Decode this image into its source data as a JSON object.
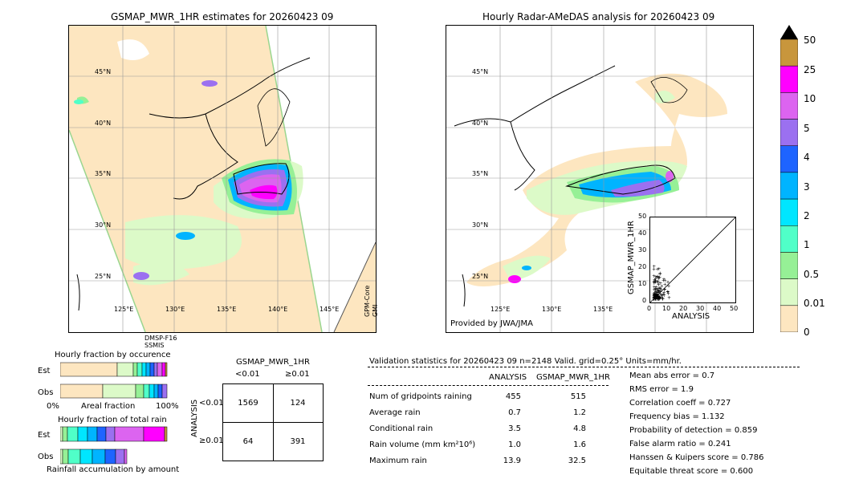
{
  "left_map": {
    "title": "GSMAP_MWR_1HR estimates for 20260423 09",
    "lat_labels": [
      "45°N",
      "40°N",
      "35°N",
      "30°N",
      "25°N"
    ],
    "lon_labels": [
      "125°E",
      "130°E",
      "135°E",
      "140°E",
      "145°E"
    ],
    "sensor_labels": {
      "dmsp": "DMSP-F16",
      "ssmis": "SSMIS",
      "gpm": "GPM-Core",
      "gmi": "GMI"
    }
  },
  "right_map": {
    "title": "Hourly Radar-AMeDAS analysis for 20260423 09",
    "lat_labels": [
      "45°N",
      "40°N",
      "35°N",
      "30°N",
      "25°N"
    ],
    "lon_labels": [
      "125°E",
      "130°E",
      "135°E"
    ],
    "provided_by": "Provided by JWA/JMA",
    "inset": {
      "ylabel": "GSMAP_MWR_1HR",
      "xlabel": "ANALYSIS",
      "ticks": [
        "0",
        "10",
        "20",
        "30",
        "40",
        "50"
      ]
    }
  },
  "colorbar": {
    "labels": [
      "50",
      "25",
      "10",
      "5",
      "4",
      "3",
      "2",
      "1",
      "0.5",
      "0.01",
      "0"
    ],
    "colors": [
      "#c8963c",
      "#ff00ff",
      "#dc64f0",
      "#9b70f0",
      "#1e64ff",
      "#00b4ff",
      "#00e6ff",
      "#50ffc8",
      "#96f096",
      "#dcfac8",
      "#fde6c0"
    ],
    "over_color": "#000000"
  },
  "fraction_occurrence": {
    "title": "Hourly fraction by occurence",
    "row_labels": [
      "Est",
      "Obs"
    ],
    "xlabel": "Areal fraction",
    "x_min": "0%",
    "x_max": "100%"
  },
  "fraction_rain": {
    "title": "Hourly fraction of total rain",
    "row_labels": [
      "Est",
      "Obs"
    ],
    "xlabel": "Rainfall accumulation by amount"
  },
  "contingency": {
    "title": "GSMAP_MWR_1HR",
    "col_labels": [
      "<0.01",
      "≥0.01"
    ],
    "row_axis": "ANALYSIS",
    "row_labels": [
      "<0.01",
      "≥0.01"
    ],
    "cells": [
      [
        "1569",
        "124"
      ],
      [
        "64",
        "391"
      ]
    ]
  },
  "validation": {
    "header": "Validation statistics for 20260423 09  n=2148 Valid. grid=0.25° Units=mm/hr.",
    "col_analysis": "ANALYSIS",
    "col_gsmap": "GSMAP_MWR_1HR",
    "rows": [
      {
        "label": "Num of gridpoints raining",
        "analysis": "455",
        "gsmap": "515"
      },
      {
        "label": "Average rain",
        "analysis": "0.7",
        "gsmap": "1.2"
      },
      {
        "label": "Conditional rain",
        "analysis": "3.5",
        "gsmap": "4.8"
      },
      {
        "label": "Rain volume (mm km²10⁶)",
        "analysis": "1.0",
        "gsmap": "1.6"
      },
      {
        "label": "Maximum rain",
        "analysis": "13.9",
        "gsmap": "32.5"
      }
    ],
    "scores": [
      "Mean abs error =    0.7",
      "RMS error =    1.9",
      "Correlation coeff =  0.727",
      "Frequency bias =  1.132",
      "Probability of detection =  0.859",
      "False alarm ratio =  0.241",
      "Hanssen & Kuipers score =  0.786",
      "Equitable threat score =  0.600"
    ]
  }
}
